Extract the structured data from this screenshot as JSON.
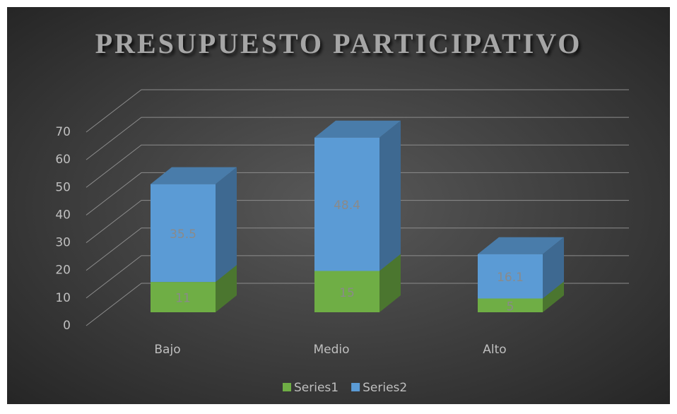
{
  "chart_data": {
    "type": "bar3d_stacked",
    "title": "PRESUPUESTO PARTICIPATIVO",
    "categories": [
      "Bajo",
      "Medio",
      "Alto"
    ],
    "series": [
      {
        "name": "Series1",
        "color": "#6fae45",
        "values": [
          11,
          15,
          5
        ]
      },
      {
        "name": "Series2",
        "color": "#5b9bd5",
        "values": [
          35.5,
          48.4,
          16.1
        ]
      }
    ],
    "ylim": [
      0,
      70
    ],
    "yticks": [
      0,
      10,
      20,
      30,
      40,
      50,
      60,
      70
    ],
    "grid": true,
    "legend": "bottom"
  }
}
